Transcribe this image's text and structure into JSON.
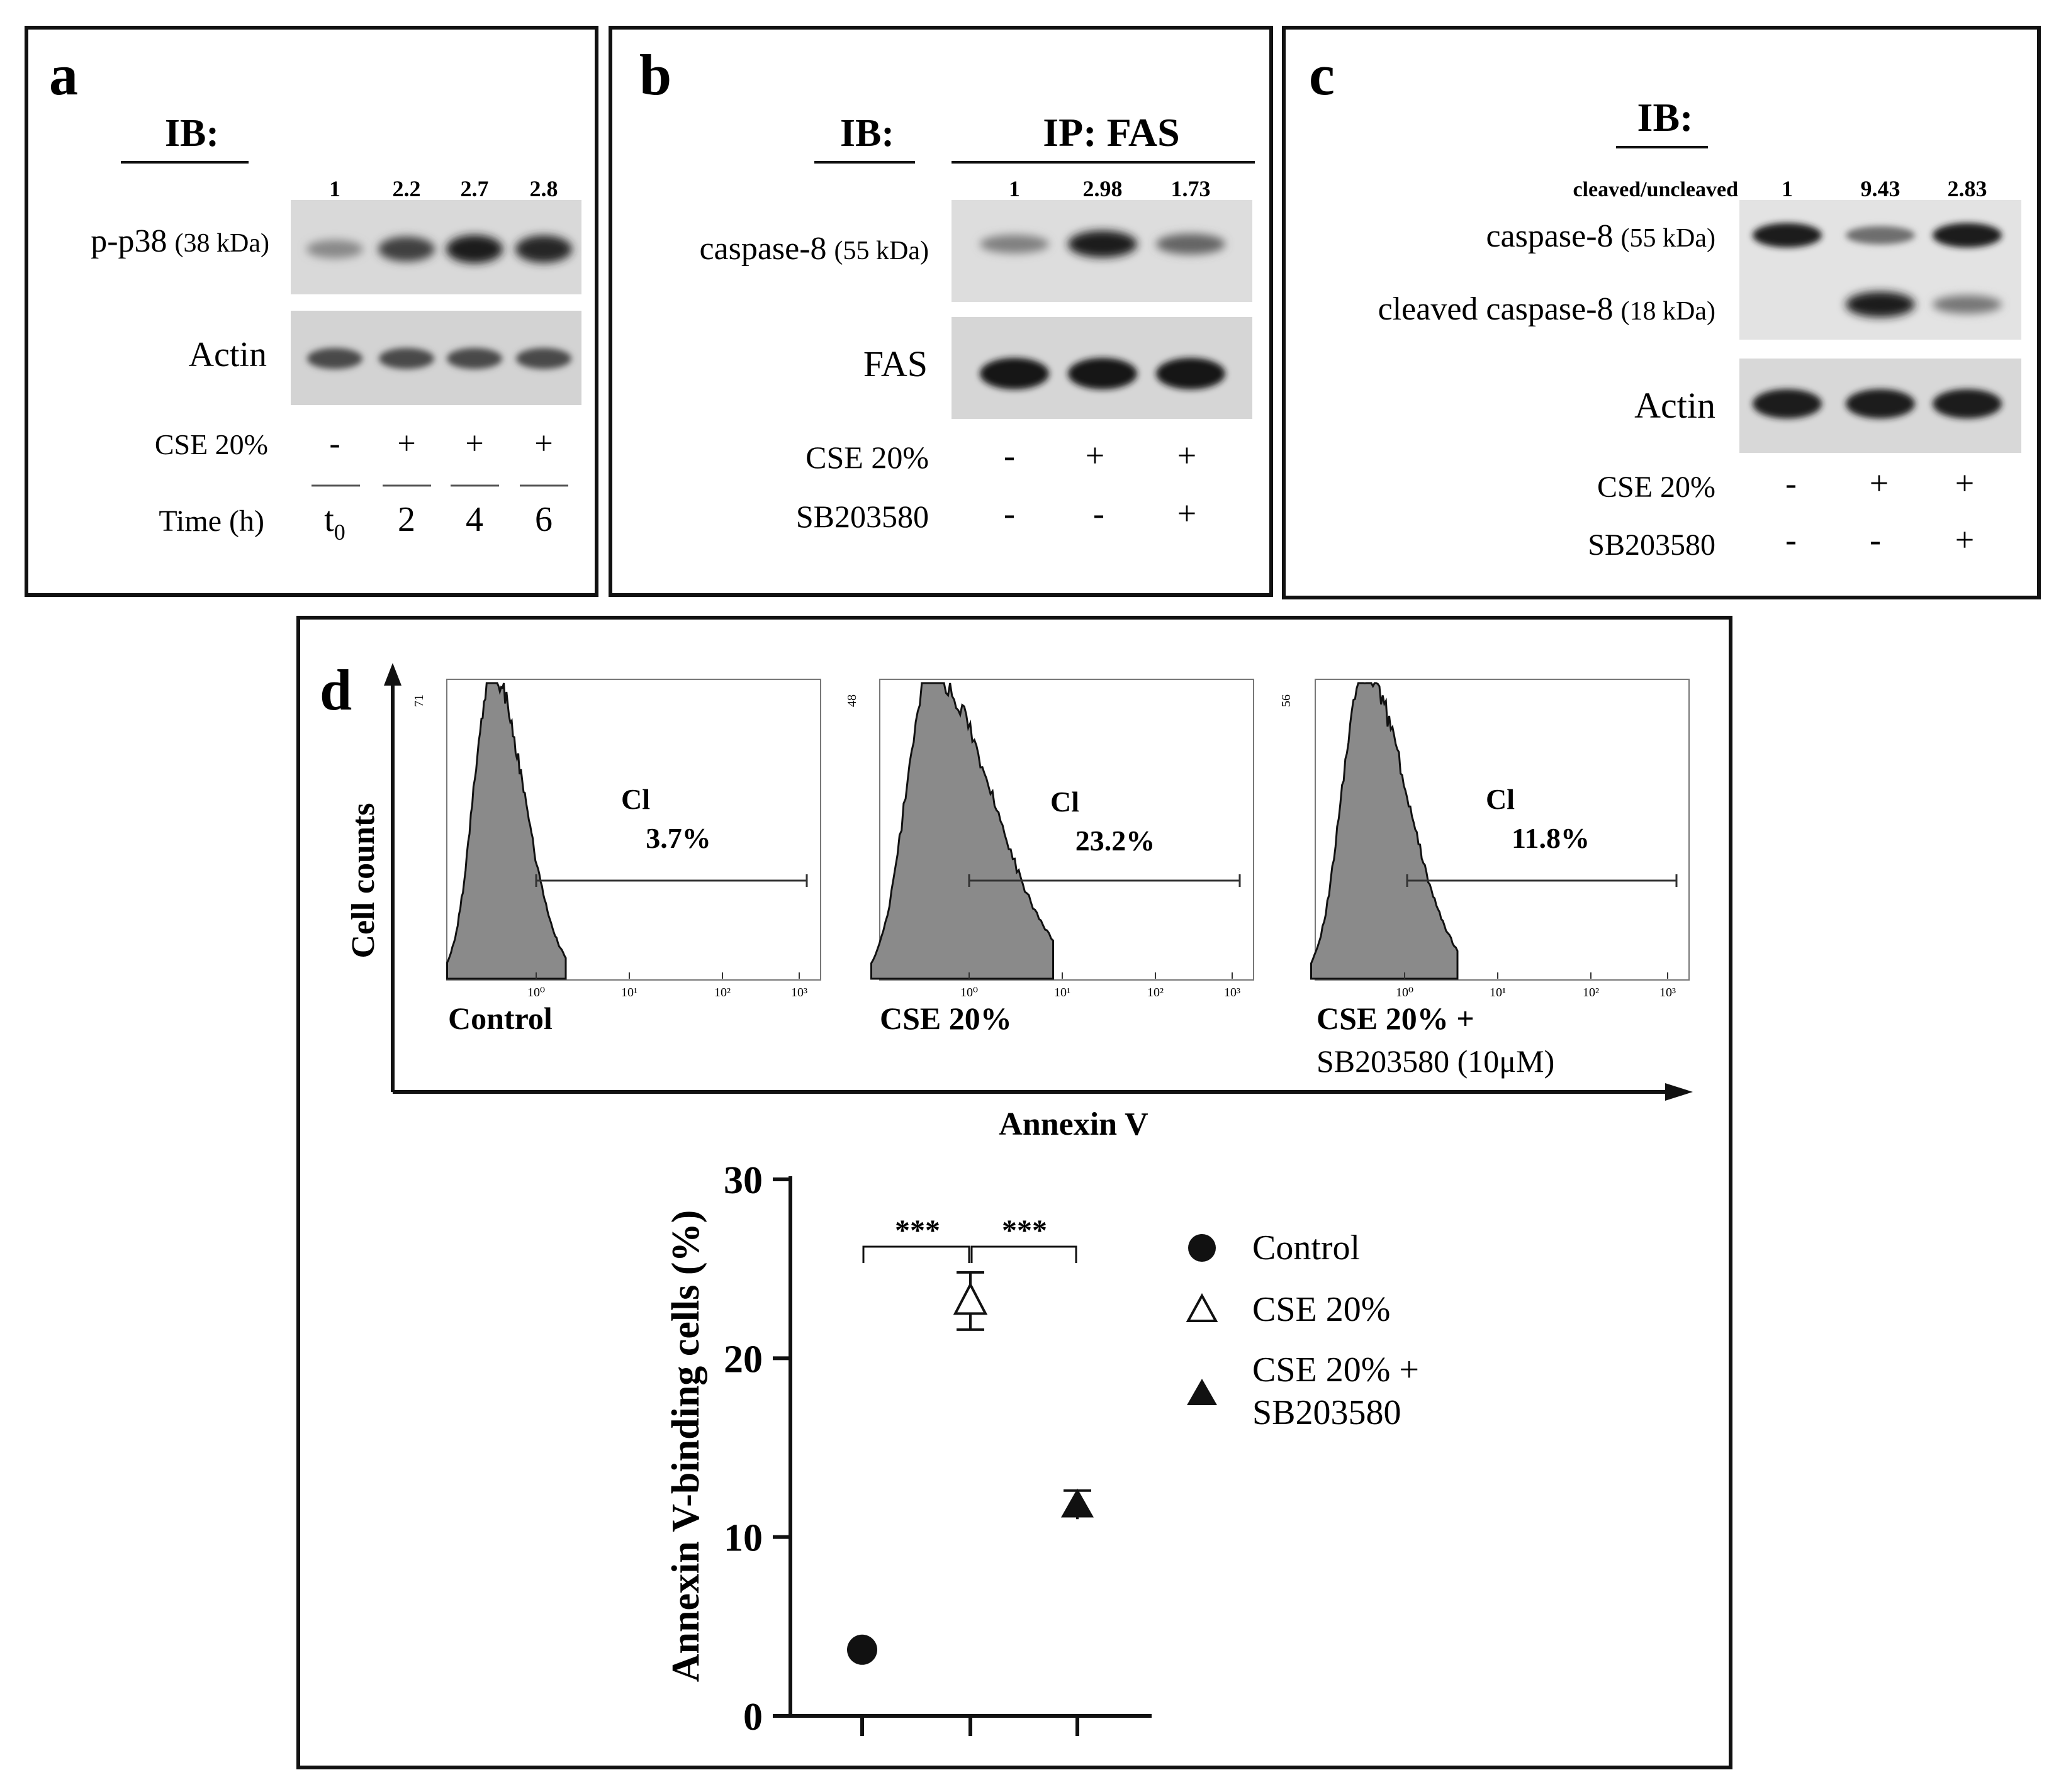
{
  "panel_a": {
    "letter": "a",
    "ib_header": "IB:",
    "ratios": [
      "1",
      "2.2",
      "2.7",
      "2.8"
    ],
    "bands": [
      {
        "label": "p-p38",
        "kda": "(38 kDa)",
        "intensity": [
          0.35,
          0.75,
          0.95,
          0.9
        ]
      },
      {
        "label": "Actin",
        "kda": "",
        "intensity": [
          0.7,
          0.7,
          0.7,
          0.7
        ]
      }
    ],
    "treatment_label": "CSE 20%",
    "treatment": [
      "-",
      "+",
      "+",
      "+"
    ],
    "time_label": "Time (h)",
    "time": [
      "t",
      "2",
      "4",
      "6"
    ],
    "time_subscript": "0"
  },
  "panel_b": {
    "letter": "b",
    "ib_header": "IB:",
    "ip_header": "IP: FAS",
    "ratios": [
      "1",
      "2.98",
      "1.73"
    ],
    "bands": [
      {
        "label": "caspase-8",
        "kda": "(55 kDa)",
        "intensity": [
          0.4,
          0.95,
          0.55
        ]
      },
      {
        "label": "FAS",
        "kda": "",
        "intensity": [
          1.0,
          1.0,
          1.0
        ]
      }
    ],
    "treatments": [
      {
        "label": "CSE 20%",
        "values": [
          "-",
          "+",
          "+"
        ]
      },
      {
        "label": "SB203580",
        "values": [
          "-",
          "-",
          "+"
        ]
      }
    ]
  },
  "panel_c": {
    "letter": "c",
    "ib_header": "IB:",
    "ratio_label": "cleaved/uncleaved",
    "ratios": [
      "1",
      "9.43",
      "2.83"
    ],
    "bands": [
      {
        "label": "caspase-8",
        "kda": "(55 kDa)",
        "intensity": [
          0.95,
          0.5,
          0.95
        ]
      },
      {
        "label": "cleaved caspase-8",
        "kda": "(18 kDa)",
        "intensity": [
          0.0,
          0.95,
          0.45
        ]
      },
      {
        "label": "Actin",
        "kda": "",
        "intensity": [
          0.95,
          0.95,
          0.95
        ]
      }
    ],
    "treatments": [
      {
        "label": "CSE 20%",
        "values": [
          "-",
          "+",
          "+"
        ]
      },
      {
        "label": "SB203580",
        "values": [
          "-",
          "-",
          "+"
        ]
      }
    ]
  },
  "panel_d": {
    "letter": "d",
    "flow": {
      "ylabel": "Cell counts",
      "xlabel": "Annexin V",
      "gate_label": "Cl",
      "tick_labels": [
        "10⁰",
        "10¹",
        "10²",
        "10³"
      ],
      "panels": [
        {
          "ymax": "71",
          "percent": "3.7%",
          "name": "Control",
          "name2": ""
        },
        {
          "ymax": "48",
          "percent": "23.2%",
          "name": "CSE 20%",
          "name2": ""
        },
        {
          "ymax": "56",
          "percent": "11.8%",
          "name": "CSE 20% +",
          "name2": "SB203580 (10μM)"
        }
      ]
    },
    "significance": [
      "***",
      "***"
    ]
  },
  "chart_data": {
    "type": "scatter",
    "ylabel": "Annexin V-binding cells (%)",
    "xlabel": "",
    "ylim": [
      0,
      30
    ],
    "yticks": [
      "0",
      "10",
      "20",
      "30"
    ],
    "series": [
      {
        "name": "Control",
        "marker": "filled-circle",
        "value": 3.7,
        "error": 0
      },
      {
        "name": "CSE 20%",
        "marker": "open-triangle",
        "value": 23.2,
        "error": 1.6
      },
      {
        "name": "CSE 20% + SB203580",
        "name_line1": "CSE 20% +",
        "name_line2": "SB203580",
        "marker": "filled-triangle",
        "value": 11.8,
        "error": 0.8
      }
    ]
  }
}
